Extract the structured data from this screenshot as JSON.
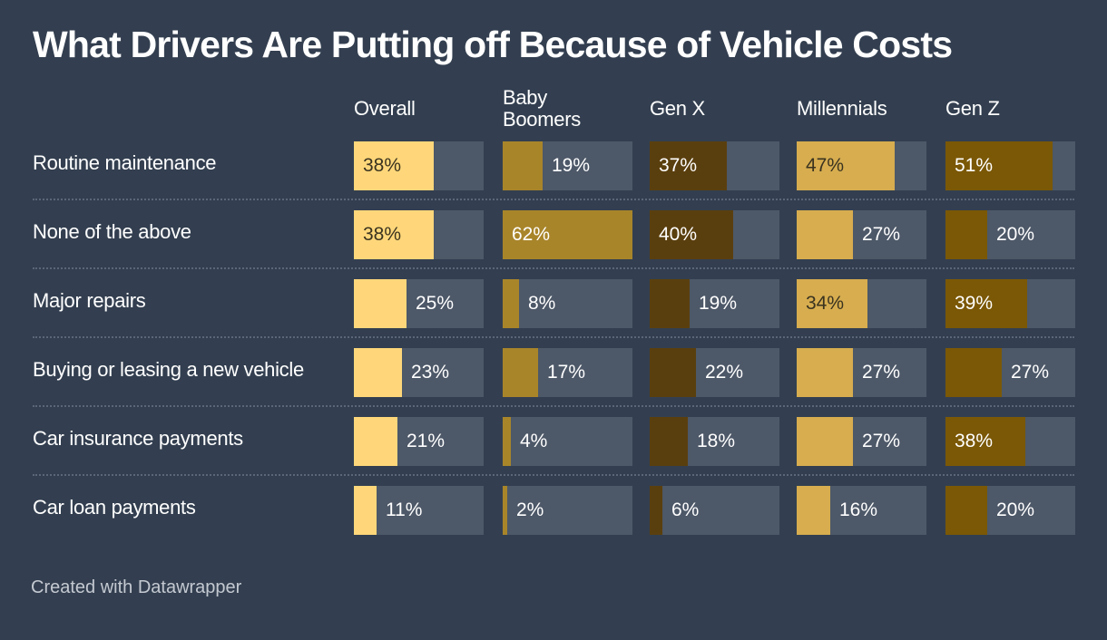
{
  "title": "What Drivers Are Putting off Because of Vehicle Costs",
  "footer": "Created with Datawrapper",
  "chart_data": {
    "type": "bar",
    "categories": [
      "Routine maintenance",
      "None of the above",
      "Major repairs",
      "Buying or leasing a new vehicle",
      "Car insurance payments",
      "Car loan payments"
    ],
    "series": [
      {
        "name": "Overall",
        "color": "#ffd77a",
        "values": [
          38,
          38,
          25,
          23,
          21,
          11
        ]
      },
      {
        "name": "Baby\nBoomers",
        "color": "#a9852a",
        "values": [
          19,
          62,
          8,
          17,
          4,
          2
        ]
      },
      {
        "name": "Gen X",
        "color": "#5a3f0e",
        "values": [
          37,
          40,
          19,
          22,
          18,
          6
        ]
      },
      {
        "name": "Millennials",
        "color": "#d7ad4f",
        "values": [
          47,
          27,
          34,
          27,
          27,
          16
        ]
      },
      {
        "name": "Gen Z",
        "color": "#7b5806",
        "values": [
          51,
          20,
          39,
          27,
          38,
          20
        ]
      }
    ],
    "value_suffix": "%",
    "ylim": [
      0,
      62
    ]
  }
}
